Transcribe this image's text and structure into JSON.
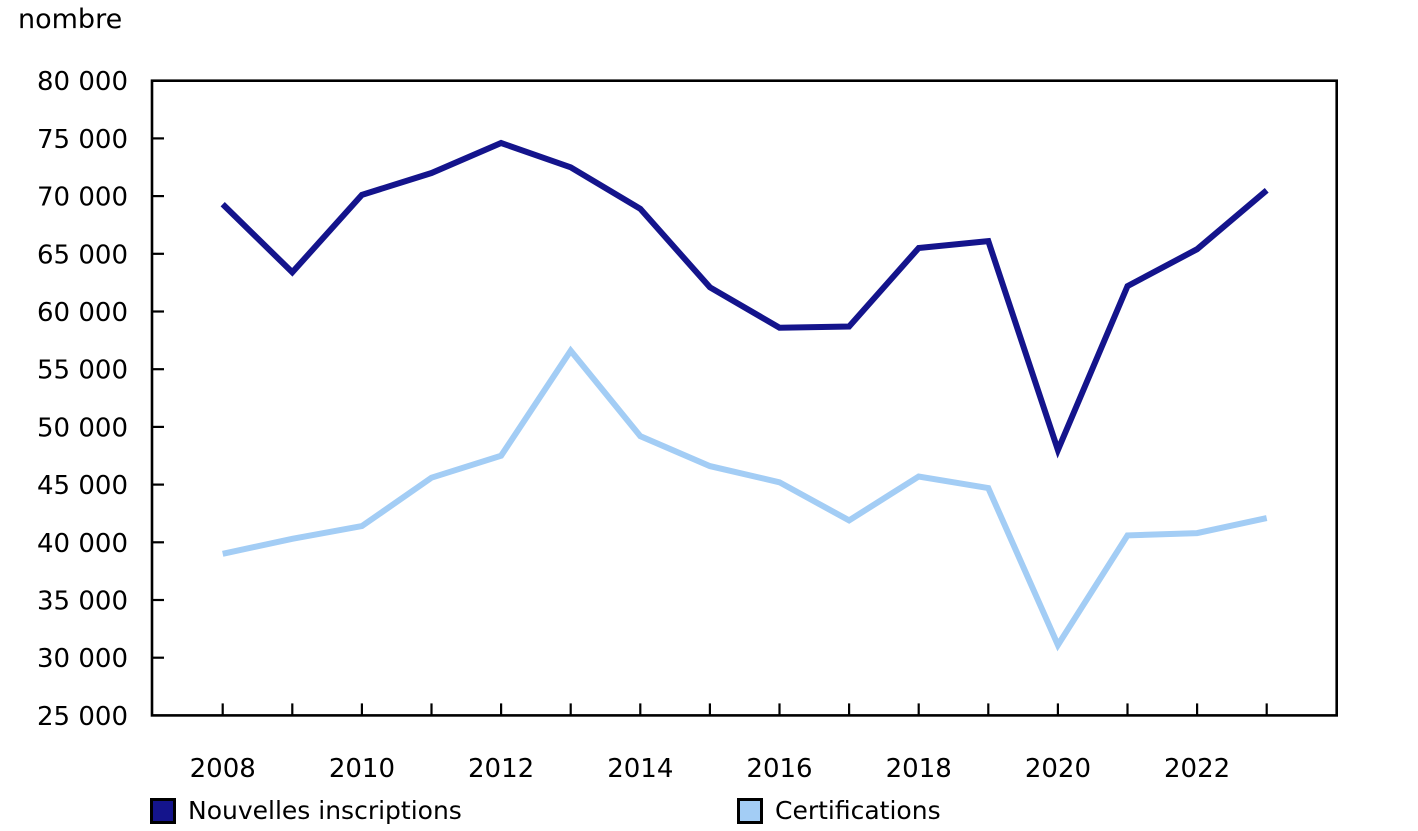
{
  "chart_data": {
    "type": "line",
    "title": "",
    "ylabel": "nombre",
    "xlabel": "",
    "x": [
      2008,
      2009,
      2010,
      2011,
      2012,
      2013,
      2014,
      2015,
      2016,
      2017,
      2018,
      2019,
      2020,
      2021,
      2022,
      2023
    ],
    "series": [
      {
        "name": "Nouvelles inscriptions",
        "color": "#14148c",
        "values": [
          69300,
          63400,
          70100,
          72000,
          74600,
          72500,
          68900,
          62100,
          58600,
          58700,
          65500,
          66100,
          48000,
          62200,
          65400,
          70500
        ]
      },
      {
        "name": "Certifications",
        "color": "#a3cdf5",
        "values": [
          39000,
          40300,
          41400,
          45600,
          47500,
          56600,
          49200,
          46600,
          45200,
          41900,
          45700,
          44700,
          31100,
          40600,
          40800,
          42100
        ]
      }
    ],
    "ylim": [
      25000,
      80000
    ],
    "xlim": [
      2007,
      2024
    ],
    "y_ticks": [
      25000,
      30000,
      35000,
      40000,
      45000,
      50000,
      55000,
      60000,
      65000,
      70000,
      75000,
      80000
    ],
    "y_tick_labels": [
      "25 000",
      "30 000",
      "35 000",
      "40 000",
      "45 000",
      "50 000",
      "55 000",
      "60 000",
      "65 000",
      "70 000",
      "75 000",
      "80 000"
    ],
    "x_label_years": [
      2008,
      2010,
      2012,
      2014,
      2016,
      2018,
      2020,
      2022
    ],
    "grid": false,
    "legend_position": "bottom"
  },
  "legend": {
    "items": [
      {
        "label": "Nouvelles inscriptions",
        "color": "#14148c"
      },
      {
        "label": "Certifications",
        "color": "#a3cdf5"
      }
    ]
  },
  "colors": {
    "axis": "#000000",
    "text": "#000000"
  }
}
